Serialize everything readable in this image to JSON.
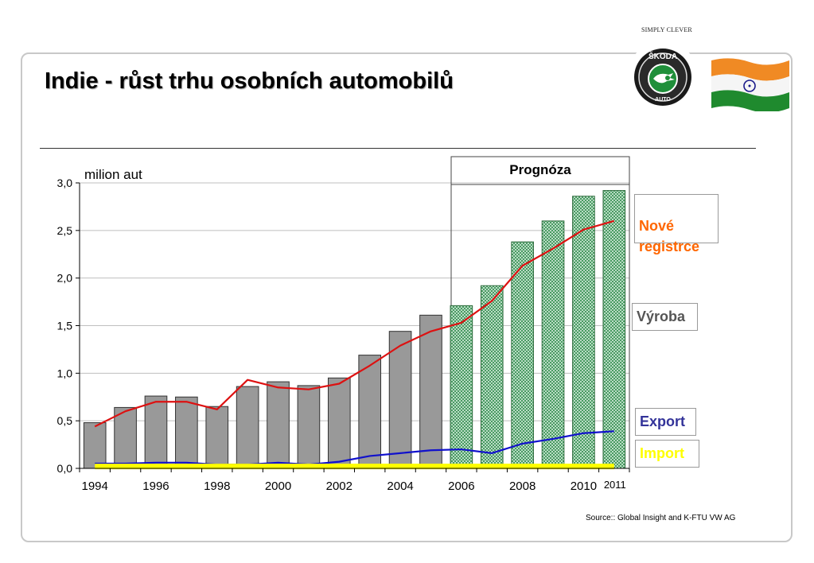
{
  "header": {
    "tagline": "SIMPLY CLEVER",
    "title": "Indie - růst trhu osobních automobilů",
    "logo_text": "ŠKODA AUTO"
  },
  "colors": {
    "bar_history": "#999999",
    "bar_forecast": "#cfe9d6",
    "bar_forecast_hatch": "#2d8a4a",
    "line_registrations": "#dd1111",
    "line_export": "#1111cc",
    "line_import": "#ffff00",
    "legend_registrations": "#ff6600",
    "legend_production": "#555555",
    "legend_export": "#333399",
    "legend_import": "#ffff00"
  },
  "chart_data": {
    "type": "bar",
    "unit_label": "milion aut",
    "forecast_label": "Prognóza",
    "ylim": [
      0,
      3.0
    ],
    "y_ticks": [
      "0,0",
      "0,5",
      "1,0",
      "1,5",
      "2,0",
      "2,5",
      "3,0"
    ],
    "y_tick_values": [
      0,
      0.5,
      1.0,
      1.5,
      2.0,
      2.5,
      3.0
    ],
    "categories": [
      "1994",
      "1995",
      "1996",
      "1997",
      "1998",
      "1999",
      "2000",
      "2001",
      "2002",
      "2003",
      "2004",
      "2005",
      "2006",
      "2007",
      "2008",
      "2009",
      "2010",
      "2011"
    ],
    "x_tick_labels": [
      {
        "label": "1994",
        "index": 0
      },
      {
        "label": "1996",
        "index": 2
      },
      {
        "label": "1998",
        "index": 4
      },
      {
        "label": "2000",
        "index": 6
      },
      {
        "label": "2002",
        "index": 8
      },
      {
        "label": "2004",
        "index": 10
      },
      {
        "label": "2006",
        "index": 12
      },
      {
        "label": "2008",
        "index": 14
      },
      {
        "label": "2010",
        "index": 16
      },
      {
        "label": "2011",
        "index": 17
      }
    ],
    "forecast_start_index": 12,
    "grid": true,
    "series": [
      {
        "name": "Výroba",
        "type": "bar",
        "values": [
          0.48,
          0.64,
          0.76,
          0.75,
          0.65,
          0.86,
          0.91,
          0.87,
          0.95,
          1.19,
          1.44,
          1.61,
          1.71,
          1.92,
          2.38,
          2.6,
          2.86,
          2.92
        ]
      },
      {
        "name": "Nové registrce",
        "type": "line",
        "values": [
          0.44,
          0.6,
          0.7,
          0.7,
          0.62,
          0.93,
          0.85,
          0.83,
          0.89,
          1.08,
          1.29,
          1.44,
          1.53,
          1.76,
          2.13,
          2.31,
          2.51,
          2.6
        ]
      },
      {
        "name": "Export",
        "type": "line",
        "values": [
          0.05,
          0.05,
          0.06,
          0.06,
          0.04,
          0.04,
          0.06,
          0.04,
          0.07,
          0.13,
          0.16,
          0.19,
          0.2,
          0.16,
          0.26,
          0.31,
          0.37,
          0.39
        ]
      },
      {
        "name": "Import",
        "type": "line",
        "values": [
          0.02,
          0.02,
          0.02,
          0.02,
          0.02,
          0.02,
          0.02,
          0.02,
          0.02,
          0.02,
          0.02,
          0.02,
          0.02,
          0.02,
          0.02,
          0.02,
          0.02,
          0.02
        ]
      }
    ],
    "legend": {
      "registrations": "Nové\nregistrce",
      "production": "Výroba",
      "export": "Export",
      "import": "Import"
    }
  },
  "footer": {
    "source": "Source:: Global Insight and K-FTU VW AG"
  }
}
